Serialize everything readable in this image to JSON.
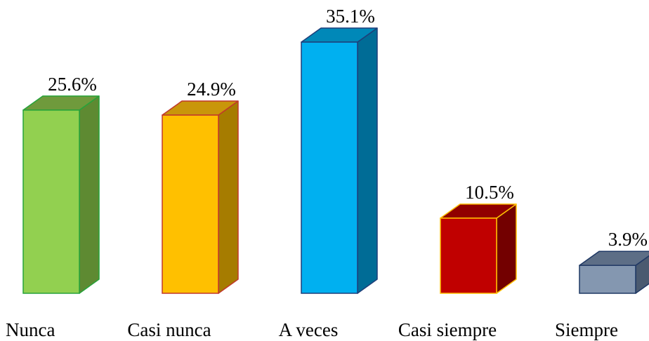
{
  "chart_data": {
    "type": "bar",
    "categories": [
      "Nunca",
      "Casi nunca",
      "A veces",
      "Casi siempre",
      "Siempre"
    ],
    "values": [
      25.6,
      24.9,
      35.1,
      10.5,
      3.9
    ],
    "value_labels": [
      "25.6%",
      "24.9%",
      "35.1%",
      "10.5%",
      "3.9%"
    ],
    "ylim": [
      0,
      35.1
    ],
    "grid": false,
    "legend": "none",
    "style": "3d-columns",
    "colors": [
      {
        "front": "#92d050",
        "side": "#5e8a32",
        "top": "#6f9a3c",
        "stroke": "#27a33a"
      },
      {
        "front": "#ffc000",
        "side": "#a67c00",
        "top": "#c9960a",
        "stroke": "#c0392b"
      },
      {
        "front": "#00b0f0",
        "side": "#006c96",
        "top": "#0088b8",
        "stroke": "#1f3f7a"
      },
      {
        "front": "#c00000",
        "side": "#730000",
        "top": "#900000",
        "stroke": "#ffc000"
      },
      {
        "front": "#8497b0",
        "side": "#4a5a70",
        "top": "#5d6e86",
        "stroke": "#1f3864"
      }
    ]
  }
}
